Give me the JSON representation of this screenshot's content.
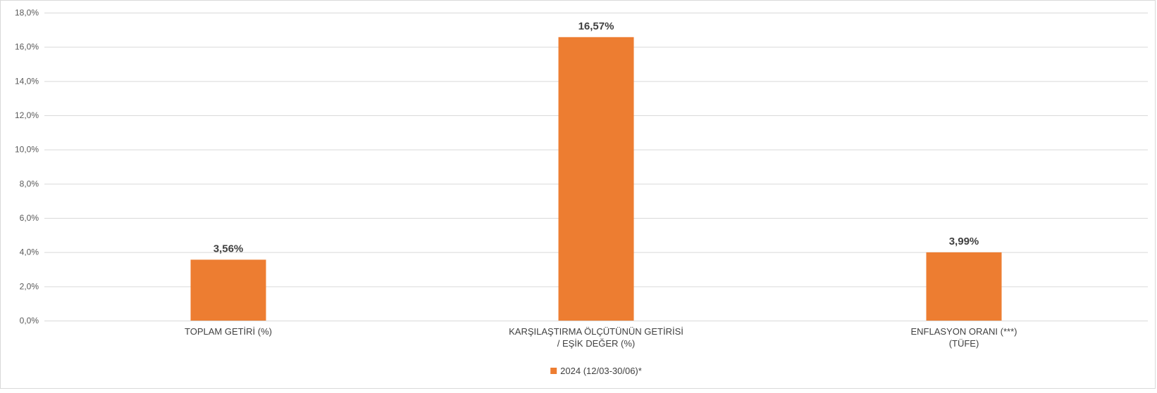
{
  "chart_data": {
    "type": "bar",
    "categories": [
      [
        "TOPLAM GETİRİ (%)"
      ],
      [
        "KARŞILAŞTIRMA ÖLÇÜTÜNÜN GETİRİSİ",
        "/ EŞİK DEĞER (%)"
      ],
      [
        "ENFLASYON ORANI (***)",
        "(TÜFE)"
      ]
    ],
    "series": [
      {
        "name": "2024 (12/03-30/06)*",
        "values": [
          3.56,
          16.57,
          3.99
        ],
        "data_labels": [
          "3,56%",
          "16,57%",
          "3,99%"
        ],
        "color": "#ED7D31"
      }
    ],
    "ylim": [
      0,
      18
    ],
    "yticks": [
      0,
      2,
      4,
      6,
      8,
      10,
      12,
      14,
      16,
      18
    ],
    "ytick_labels": [
      "0,0%",
      "2,0%",
      "4,0%",
      "6,0%",
      "8,0%",
      "10,0%",
      "12,0%",
      "14,0%",
      "16,0%",
      "18,0%"
    ],
    "grid": true,
    "legend_position": "bottom"
  }
}
